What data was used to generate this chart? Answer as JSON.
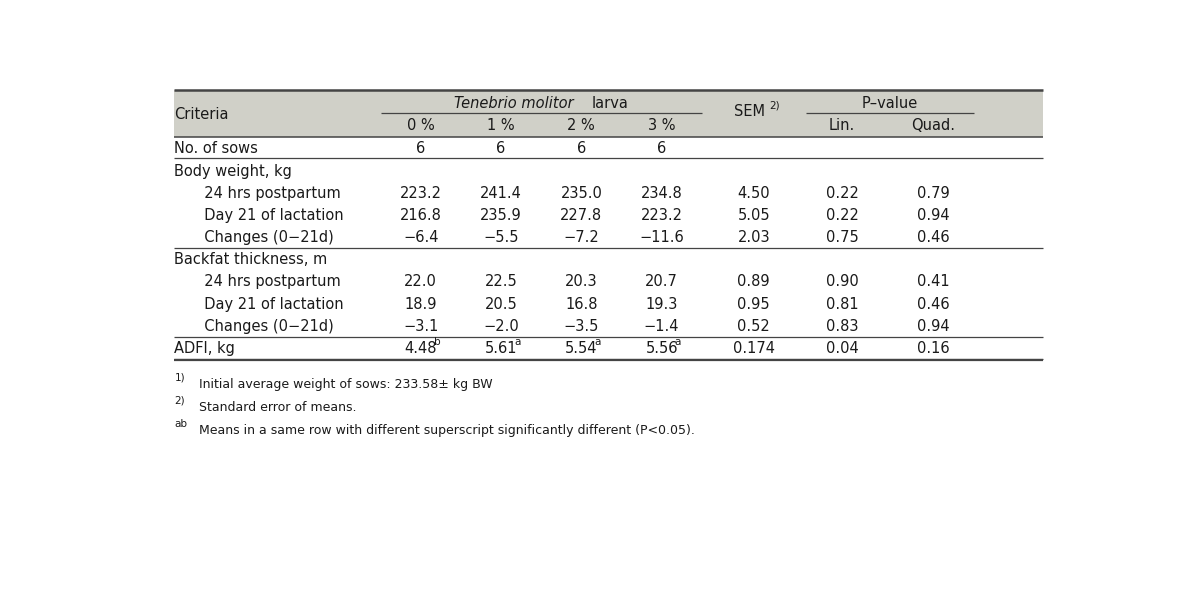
{
  "header_bg": "#d0d0c8",
  "text_color": "#1a1a1a",
  "font_size": 10.5,
  "footnote_size": 9.0,
  "rows": [
    {
      "label": "No. of sows",
      "indent": false,
      "values": [
        "6",
        "6",
        "6",
        "6",
        "",
        "",
        ""
      ],
      "div_above": true,
      "div_below": false,
      "adfi": false
    },
    {
      "label": "Body weight, kg",
      "indent": false,
      "values": [
        "",
        "",
        "",
        "",
        "",
        "",
        ""
      ],
      "div_above": true,
      "div_below": false,
      "adfi": false
    },
    {
      "label": "  24 hrs postpartum",
      "indent": true,
      "values": [
        "223.2",
        "241.4",
        "235.0",
        "234.8",
        "4.50",
        "0.22",
        "0.79"
      ],
      "div_above": false,
      "div_below": false,
      "adfi": false
    },
    {
      "label": "  Day 21 of lactation",
      "indent": true,
      "values": [
        "216.8",
        "235.9",
        "227.8",
        "223.2",
        "5.05",
        "0.22",
        "0.94"
      ],
      "div_above": false,
      "div_below": false,
      "adfi": false
    },
    {
      "label": "  Changes (0−21d)",
      "indent": true,
      "values": [
        "−6.4",
        "−5.5",
        "−7.2",
        "−11.6",
        "2.03",
        "0.75",
        "0.46"
      ],
      "div_above": false,
      "div_below": true,
      "adfi": false
    },
    {
      "label": "Backfat thickness, m",
      "indent": false,
      "values": [
        "",
        "",
        "",
        "",
        "",
        "",
        ""
      ],
      "div_above": false,
      "div_below": false,
      "adfi": false
    },
    {
      "label": "  24 hrs postpartum",
      "indent": true,
      "values": [
        "22.0",
        "22.5",
        "20.3",
        "20.7",
        "0.89",
        "0.90",
        "0.41"
      ],
      "div_above": false,
      "div_below": false,
      "adfi": false
    },
    {
      "label": "  Day 21 of lactation",
      "indent": true,
      "values": [
        "18.9",
        "20.5",
        "16.8",
        "19.3",
        "0.95",
        "0.81",
        "0.46"
      ],
      "div_above": false,
      "div_below": false,
      "adfi": false
    },
    {
      "label": "  Changes (0−21d)",
      "indent": true,
      "values": [
        "−3.1",
        "−2.0",
        "−3.5",
        "−1.4",
        "0.52",
        "0.83",
        "0.94"
      ],
      "div_above": false,
      "div_below": true,
      "adfi": false
    },
    {
      "label": "ADFI, kg",
      "indent": false,
      "values": [
        "4.48",
        "5.61",
        "5.54",
        "5.56",
        "0.174",
        "0.04",
        "0.16"
      ],
      "div_above": false,
      "div_below": true,
      "adfi": true,
      "sups": [
        "b",
        "a",
        "a",
        "a",
        "",
        "",
        ""
      ]
    }
  ],
  "footnotes": [
    "1)  Initial average weight of sows: 233.58± kg BW",
    "2)  Standard error of means.",
    "ab  Means in a same row with different superscript significantly different (P<0.05)."
  ]
}
